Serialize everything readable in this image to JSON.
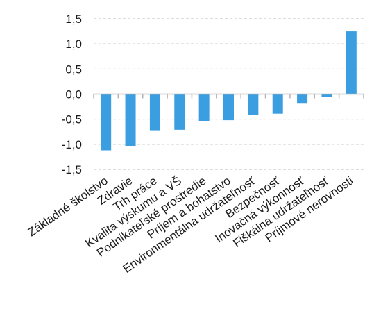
{
  "chart_data": {
    "type": "bar",
    "title": "",
    "xlabel": "",
    "ylabel": "",
    "categories": [
      "Základné školstvo",
      "Zdravie",
      "Trh práce",
      "Kvalita výskumu a VŠ",
      "Podnikateľské prostredie",
      "Príjem a bohatstvo",
      "Environmentálna udržateľnosť",
      "Bezpečnosť",
      "Inovačná výkonnosť",
      "Fiškálna udržateľnosť",
      "Príjmové nerovnosti"
    ],
    "values": [
      -1.12,
      -1.03,
      -0.72,
      -0.71,
      -0.54,
      -0.52,
      -0.42,
      -0.39,
      -0.19,
      -0.06,
      1.25
    ],
    "ylim": [
      -1.5,
      1.5
    ],
    "yticks": [
      "1,5",
      "1,0",
      "0,5",
      "0,0",
      "-0,5",
      "-1,0",
      "-1,5"
    ],
    "ytick_values": [
      1.5,
      1.0,
      0.5,
      0.0,
      -0.5,
      -1.0,
      -1.5
    ],
    "grid": true,
    "colors": {
      "bar": "#3a9ee0",
      "grid": "#bdbdbd",
      "axis": "#b3b3b3"
    }
  }
}
